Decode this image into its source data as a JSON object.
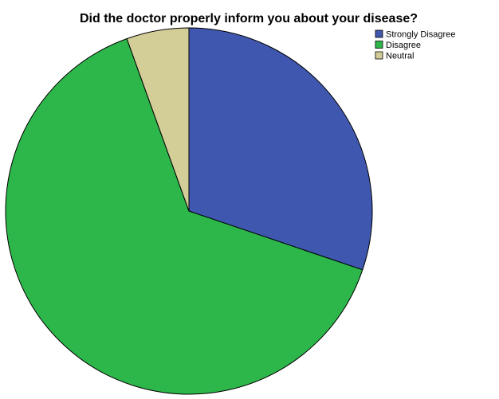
{
  "chart_data": {
    "type": "pie",
    "title": "Did the doctor properly inform you about your disease?",
    "slices": [
      {
        "label": "Strongly Disagree",
        "value": 30.2,
        "color": "#3f57ae"
      },
      {
        "label": "Disagree",
        "value": 64.3,
        "color": "#2db74a"
      },
      {
        "label": "Neutral",
        "value": 5.5,
        "color": "#d3cd98"
      }
    ],
    "start_angle": "12 o'clock",
    "direction": "clockwise",
    "legend": {
      "position": "top-right"
    }
  }
}
